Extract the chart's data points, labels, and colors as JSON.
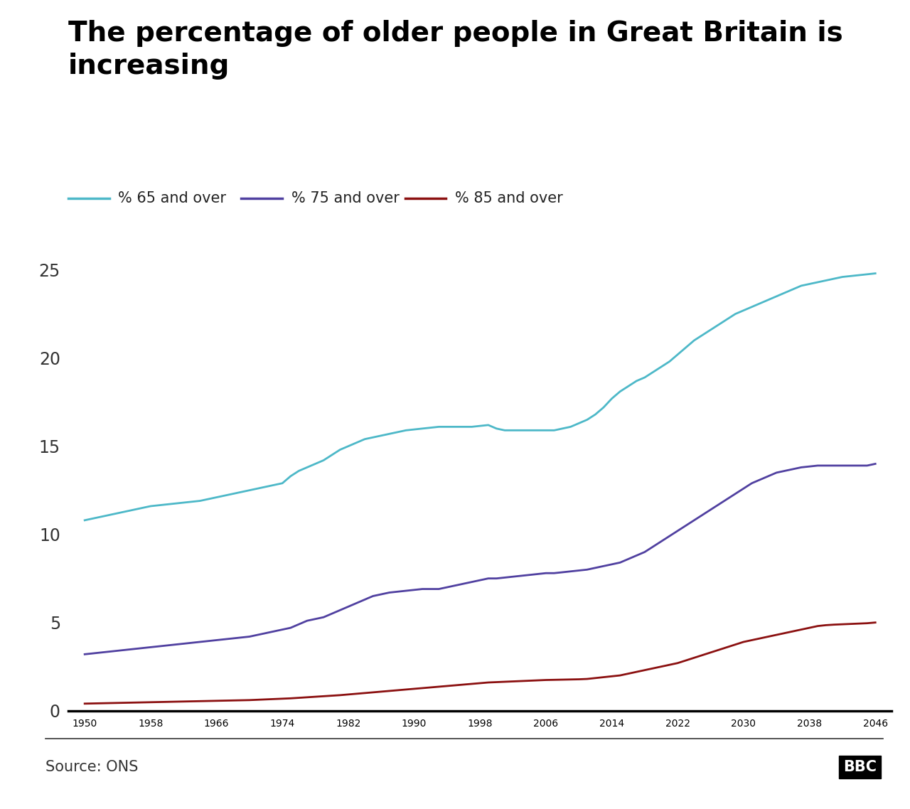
{
  "title": "The percentage of older people in Great Britain is\nincreasing",
  "source": "Source: ONS",
  "colors": {
    "65_over": "#4db8c8",
    "75_over": "#5040a0",
    "85_over": "#8b1010"
  },
  "legend_labels": [
    "% 65 and over",
    "% 75 and over",
    "% 85 and over"
  ],
  "years": [
    1950,
    1951,
    1952,
    1953,
    1954,
    1955,
    1956,
    1957,
    1958,
    1959,
    1960,
    1961,
    1962,
    1963,
    1964,
    1965,
    1966,
    1967,
    1968,
    1969,
    1970,
    1971,
    1972,
    1973,
    1974,
    1975,
    1976,
    1977,
    1978,
    1979,
    1980,
    1981,
    1982,
    1983,
    1984,
    1985,
    1986,
    1987,
    1988,
    1989,
    1990,
    1991,
    1992,
    1993,
    1994,
    1995,
    1996,
    1997,
    1998,
    1999,
    2000,
    2001,
    2002,
    2003,
    2004,
    2005,
    2006,
    2007,
    2008,
    2009,
    2010,
    2011,
    2012,
    2013,
    2014,
    2015,
    2016,
    2017,
    2018,
    2019,
    2020,
    2021,
    2022,
    2023,
    2024,
    2025,
    2026,
    2027,
    2028,
    2029,
    2030,
    2031,
    2032,
    2033,
    2034,
    2035,
    2036,
    2037,
    2038,
    2039,
    2040,
    2041,
    2042,
    2043,
    2044,
    2045,
    2046
  ],
  "pct_65": [
    10.8,
    10.9,
    11.0,
    11.1,
    11.2,
    11.3,
    11.4,
    11.5,
    11.6,
    11.65,
    11.7,
    11.75,
    11.8,
    11.85,
    11.9,
    12.0,
    12.1,
    12.2,
    12.3,
    12.4,
    12.5,
    12.6,
    12.7,
    12.8,
    12.9,
    13.3,
    13.6,
    13.8,
    14.0,
    14.2,
    14.5,
    14.8,
    15.0,
    15.2,
    15.4,
    15.5,
    15.6,
    15.7,
    15.8,
    15.9,
    15.95,
    16.0,
    16.05,
    16.1,
    16.1,
    16.1,
    16.1,
    16.1,
    16.15,
    16.2,
    16.0,
    15.9,
    15.9,
    15.9,
    15.9,
    15.9,
    15.9,
    15.9,
    16.0,
    16.1,
    16.3,
    16.5,
    16.8,
    17.2,
    17.7,
    18.1,
    18.4,
    18.7,
    18.9,
    19.2,
    19.5,
    19.8,
    20.2,
    20.6,
    21.0,
    21.3,
    21.6,
    21.9,
    22.2,
    22.5,
    22.7,
    22.9,
    23.1,
    23.3,
    23.5,
    23.7,
    23.9,
    24.1,
    24.2,
    24.3,
    24.4,
    24.5,
    24.6,
    24.65,
    24.7,
    24.75,
    24.8
  ],
  "pct_75": [
    3.2,
    3.25,
    3.3,
    3.35,
    3.4,
    3.45,
    3.5,
    3.55,
    3.6,
    3.65,
    3.7,
    3.75,
    3.8,
    3.85,
    3.9,
    3.95,
    4.0,
    4.05,
    4.1,
    4.15,
    4.2,
    4.3,
    4.4,
    4.5,
    4.6,
    4.7,
    4.9,
    5.1,
    5.2,
    5.3,
    5.5,
    5.7,
    5.9,
    6.1,
    6.3,
    6.5,
    6.6,
    6.7,
    6.75,
    6.8,
    6.85,
    6.9,
    6.9,
    6.9,
    7.0,
    7.1,
    7.2,
    7.3,
    7.4,
    7.5,
    7.5,
    7.55,
    7.6,
    7.65,
    7.7,
    7.75,
    7.8,
    7.8,
    7.85,
    7.9,
    7.95,
    8.0,
    8.1,
    8.2,
    8.3,
    8.4,
    8.6,
    8.8,
    9.0,
    9.3,
    9.6,
    9.9,
    10.2,
    10.5,
    10.8,
    11.1,
    11.4,
    11.7,
    12.0,
    12.3,
    12.6,
    12.9,
    13.1,
    13.3,
    13.5,
    13.6,
    13.7,
    13.8,
    13.85,
    13.9,
    13.9,
    13.9,
    13.9,
    13.9,
    13.9,
    13.9,
    14.0
  ],
  "pct_85": [
    0.4,
    0.41,
    0.42,
    0.43,
    0.44,
    0.45,
    0.46,
    0.47,
    0.48,
    0.49,
    0.5,
    0.51,
    0.52,
    0.53,
    0.54,
    0.55,
    0.56,
    0.57,
    0.58,
    0.59,
    0.6,
    0.62,
    0.64,
    0.66,
    0.68,
    0.7,
    0.73,
    0.76,
    0.79,
    0.82,
    0.85,
    0.88,
    0.92,
    0.96,
    1.0,
    1.04,
    1.08,
    1.12,
    1.16,
    1.2,
    1.24,
    1.28,
    1.32,
    1.36,
    1.4,
    1.44,
    1.48,
    1.52,
    1.56,
    1.6,
    1.62,
    1.64,
    1.66,
    1.68,
    1.7,
    1.72,
    1.74,
    1.75,
    1.76,
    1.77,
    1.78,
    1.8,
    1.85,
    1.9,
    1.95,
    2.0,
    2.1,
    2.2,
    2.3,
    2.4,
    2.5,
    2.6,
    2.7,
    2.85,
    3.0,
    3.15,
    3.3,
    3.45,
    3.6,
    3.75,
    3.9,
    4.0,
    4.1,
    4.2,
    4.3,
    4.4,
    4.5,
    4.6,
    4.7,
    4.8,
    4.85,
    4.88,
    4.9,
    4.92,
    4.94,
    4.96,
    5.0
  ],
  "yticks": [
    0,
    5,
    10,
    15,
    20,
    25
  ],
  "xticks": [
    1950,
    1958,
    1966,
    1974,
    1982,
    1990,
    1998,
    2006,
    2014,
    2022,
    2030,
    2038,
    2046
  ],
  "ylim": [
    -0.3,
    27
  ],
  "xlim": [
    1948,
    2048
  ],
  "background_color": "#ffffff"
}
